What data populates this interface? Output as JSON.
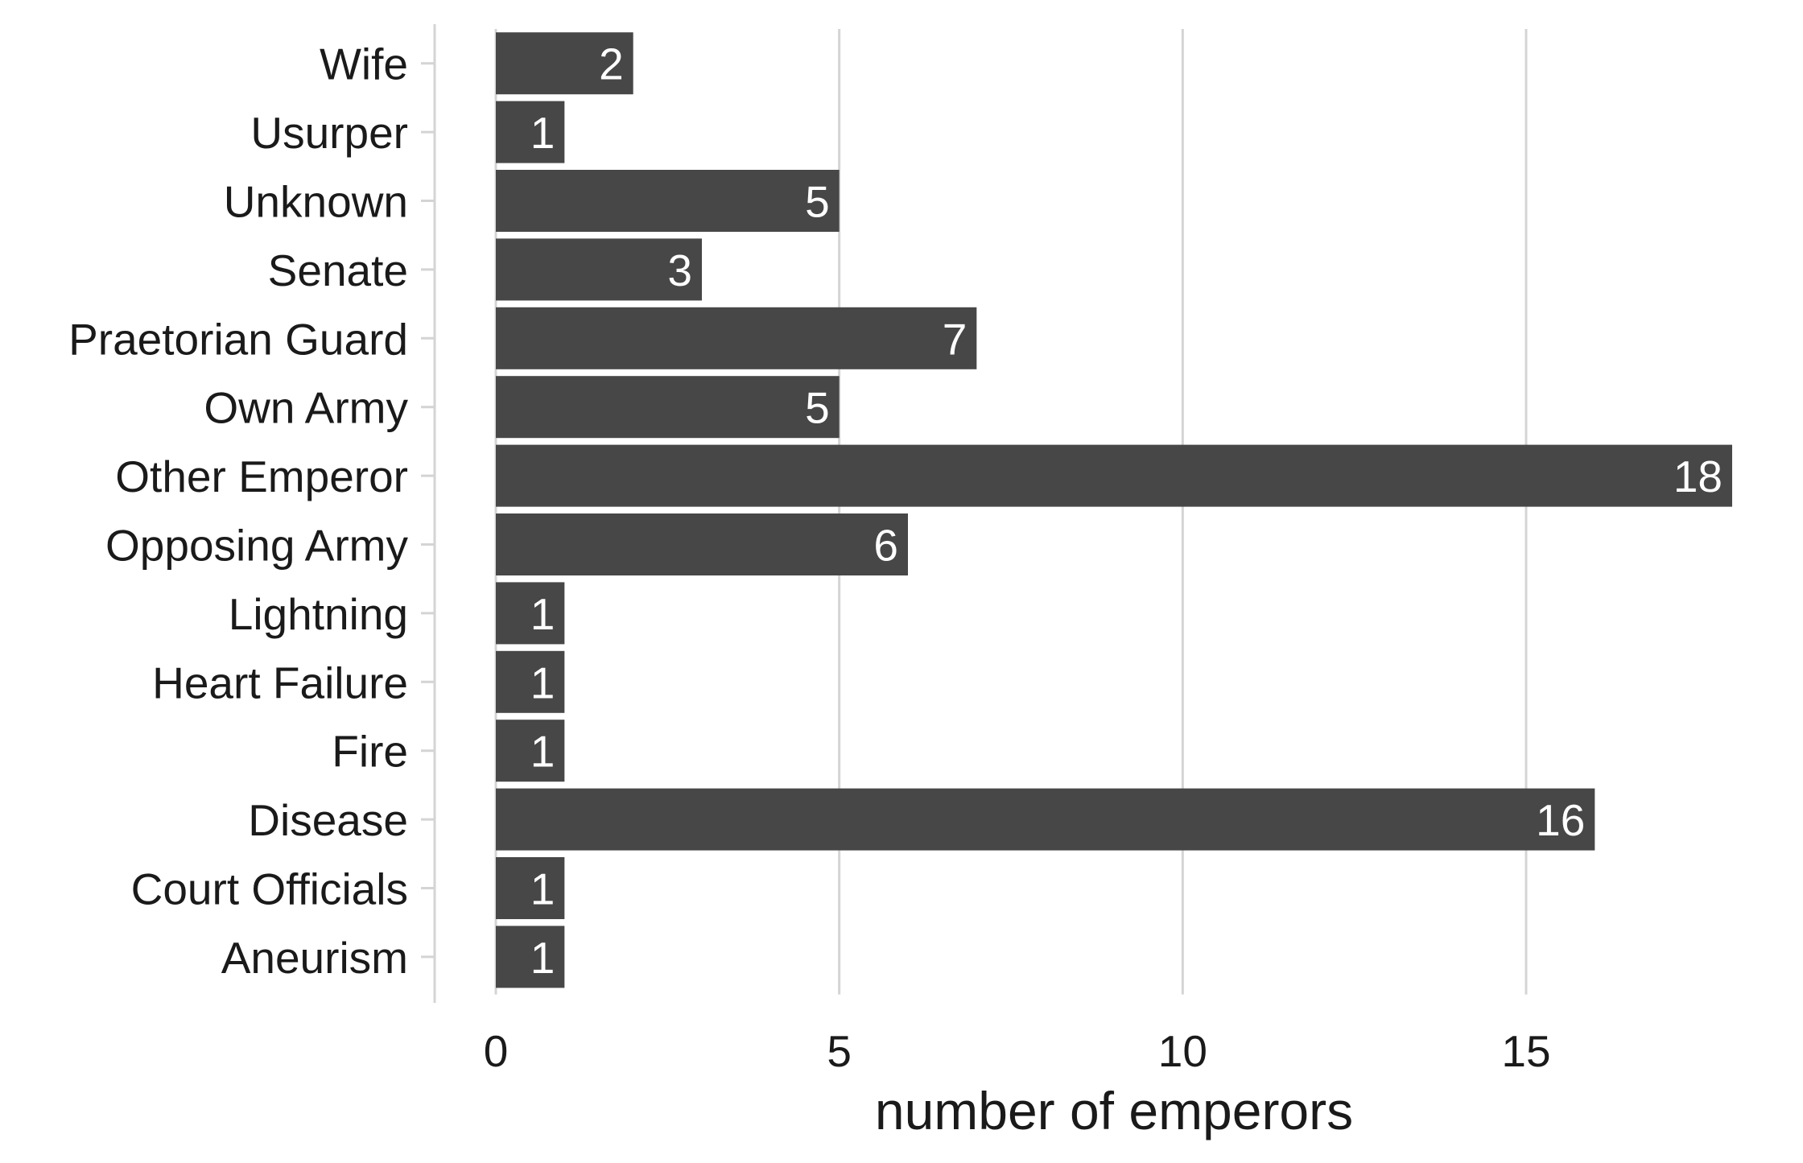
{
  "chart_data": {
    "type": "bar",
    "orientation": "horizontal",
    "categories": [
      "Wife",
      "Usurper",
      "Unknown",
      "Senate",
      "Praetorian Guard",
      "Own Army",
      "Other Emperor",
      "Opposing Army",
      "Lightning",
      "Heart Failure",
      "Fire",
      "Disease",
      "Court Officials",
      "Aneurism"
    ],
    "values": [
      2,
      1,
      5,
      3,
      7,
      5,
      18,
      6,
      1,
      1,
      1,
      16,
      1,
      1
    ],
    "data_labels": [
      "2",
      "1",
      "5",
      "3",
      "7",
      "5",
      "18",
      "6",
      "1",
      "1",
      "1",
      "16",
      "1",
      "1"
    ],
    "xlabel": "number of emperors",
    "ylabel": "",
    "xlim": [
      0,
      18
    ],
    "x_ticks": [
      0,
      5,
      10,
      15
    ],
    "x_tick_labels": [
      "0",
      "5",
      "10",
      "15"
    ],
    "grid": "vertical major lines",
    "legend": "none",
    "colors": {
      "bar": "#474747",
      "grid": "#d4d4d4",
      "axis": "#d4d4d4",
      "label": "#ffffff"
    }
  }
}
